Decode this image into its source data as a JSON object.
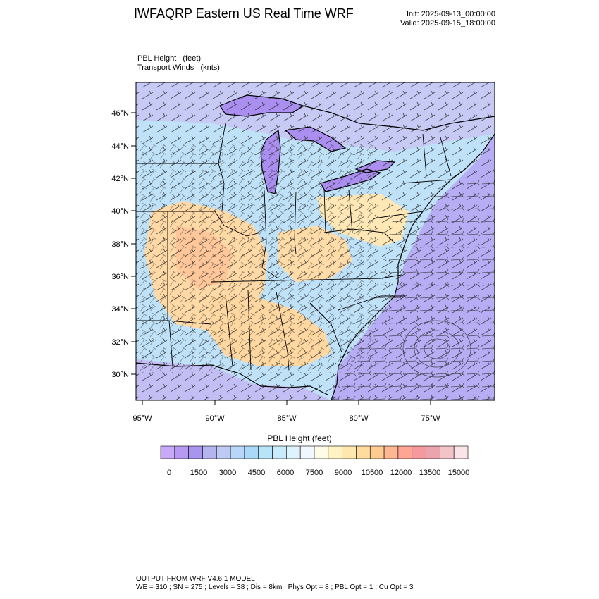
{
  "header": {
    "title": "IWFAQRP Eastern US Real Time WRF",
    "init": "Init: 2025-09-13_00:00:00",
    "valid": "Valid: 2025-09-15_18:00:00"
  },
  "variables": {
    "line1": "PBL Height   (feet)",
    "line2": "Transport Winds   (knts)"
  },
  "axes": {
    "lat_labels": [
      "46°N",
      "44°N",
      "42°N",
      "40°N",
      "38°N",
      "36°N",
      "34°N",
      "32°N",
      "30°N"
    ],
    "lon_labels": [
      "95°W",
      "90°W",
      "85°W",
      "80°W",
      "75°W"
    ]
  },
  "colorbar": {
    "title": "PBL Height  (feet)",
    "tick_labels": [
      "0",
      "1500",
      "3000",
      "4500",
      "6000",
      "7500",
      "9000",
      "10500",
      "12000",
      "13500",
      "15000"
    ],
    "colors": [
      "#c8a8f8",
      "#b69af2",
      "#a895ee",
      "#b4b5f0",
      "#bfcaf4",
      "#b7d6f8",
      "#aad8f8",
      "#b8e4fa",
      "#c8ecfb",
      "#dff3fc",
      "#f1f8fd",
      "#fffbe9",
      "#fff2c3",
      "#ffe8b0",
      "#ffdc9e",
      "#ffcb91",
      "#ffb791",
      "#ffa596",
      "#f49a9e",
      "#eaa4ab",
      "#f2c4c8",
      "#fbe4e7"
    ]
  },
  "footer": {
    "line1": "OUTPUT FROM WRF V4.6.1 MODEL",
    "line2": "WE = 310 ; SN = 275 ; Levels = 38 ; Dis = 8km ; Phys Opt = 8 ; PBL Opt = 1 ; Cu Opt = 3"
  }
}
